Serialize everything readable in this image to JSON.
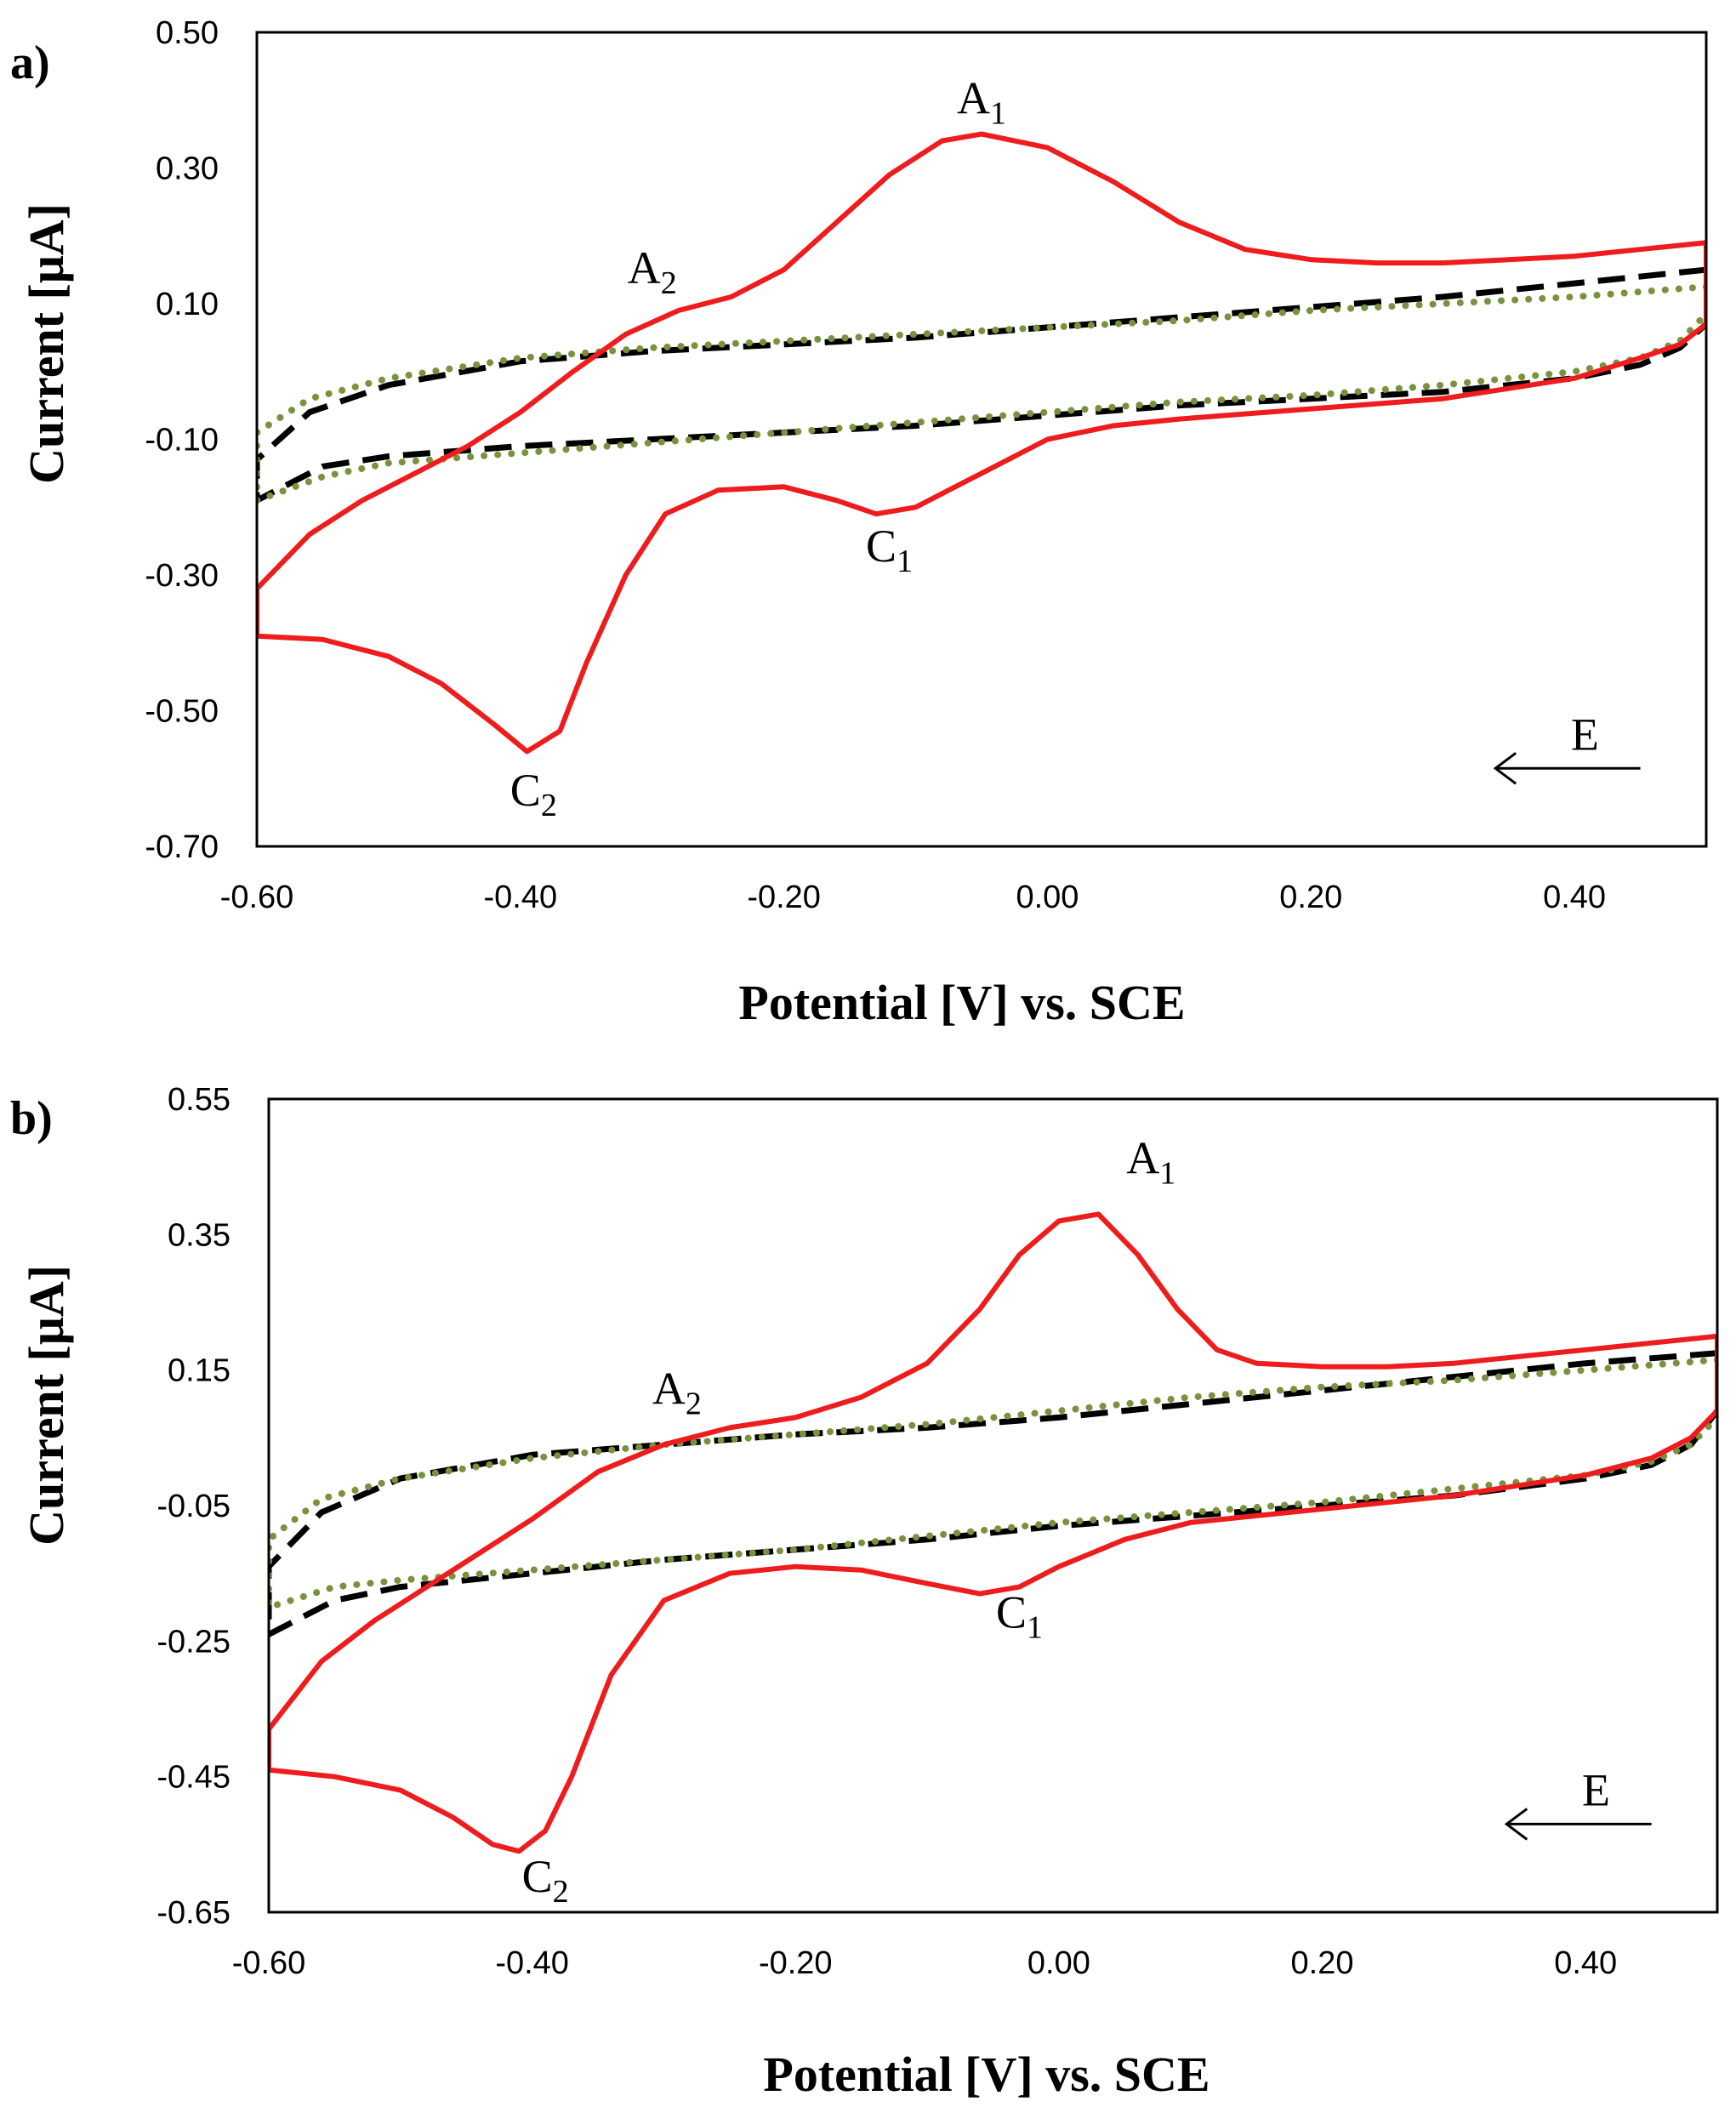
{
  "chart_data": [
    {
      "type": "line",
      "panel_label": "a)",
      "xlabel": "Potential [V] vs. SCE",
      "ylabel": "Current [μA]",
      "xlim": [
        -0.6,
        0.5
      ],
      "ylim": [
        -0.7,
        0.5
      ],
      "x_ticks": [
        -0.6,
        -0.4,
        -0.2,
        0.0,
        0.2,
        0.4
      ],
      "x_tick_labels": [
        "-0.60",
        "-0.40",
        "-0.20",
        "0.00",
        "0.20",
        "0.40"
      ],
      "y_ticks": [
        0.5,
        0.3,
        0.1,
        -0.1,
        -0.3,
        -0.5,
        -0.7
      ],
      "y_tick_labels": [
        "0.50",
        "0.30",
        "0.10",
        "-0.10",
        "-0.30",
        "-0.50",
        "-0.70"
      ],
      "grid": false,
      "annotations": [
        {
          "id": "A1",
          "main": "A",
          "sub": "1",
          "x": -0.05,
          "y": 0.38
        },
        {
          "id": "A2",
          "main": "A",
          "sub": "2",
          "x": -0.3,
          "y": 0.13
        },
        {
          "id": "C1",
          "main": "C",
          "sub": "1",
          "x": -0.12,
          "y": -0.28
        },
        {
          "id": "C2",
          "main": "C",
          "sub": "2",
          "x": -0.39,
          "y": -0.64
        }
      ],
      "scan_direction": {
        "label": "E",
        "x_from": 0.45,
        "x_to": 0.34,
        "y": -0.585
      },
      "series": [
        {
          "name": "red-solid",
          "color": "#ee1c1c",
          "style": "solid",
          "points": [
            [
              0.5,
              0.19
            ],
            [
              0.45,
              0.18
            ],
            [
              0.4,
              0.17
            ],
            [
              0.35,
              0.165
            ],
            [
              0.3,
              0.16
            ],
            [
              0.25,
              0.16
            ],
            [
              0.2,
              0.165
            ],
            [
              0.15,
              0.18
            ],
            [
              0.1,
              0.22
            ],
            [
              0.05,
              0.28
            ],
            [
              0.0,
              0.33
            ],
            [
              -0.05,
              0.35
            ],
            [
              -0.08,
              0.34
            ],
            [
              -0.12,
              0.29
            ],
            [
              -0.16,
              0.22
            ],
            [
              -0.2,
              0.15
            ],
            [
              -0.24,
              0.11
            ],
            [
              -0.28,
              0.09
            ],
            [
              -0.32,
              0.055
            ],
            [
              -0.36,
              0.0
            ],
            [
              -0.4,
              -0.06
            ],
            [
              -0.44,
              -0.11
            ],
            [
              -0.48,
              -0.15
            ],
            [
              -0.52,
              -0.19
            ],
            [
              -0.56,
              -0.24
            ],
            [
              -0.6,
              -0.32
            ],
            [
              -0.6,
              -0.39
            ],
            [
              -0.55,
              -0.395
            ],
            [
              -0.5,
              -0.42
            ],
            [
              -0.46,
              -0.46
            ],
            [
              -0.42,
              -0.52
            ],
            [
              -0.395,
              -0.56
            ],
            [
              -0.37,
              -0.53
            ],
            [
              -0.35,
              -0.43
            ],
            [
              -0.32,
              -0.3
            ],
            [
              -0.29,
              -0.21
            ],
            [
              -0.25,
              -0.175
            ],
            [
              -0.2,
              -0.17
            ],
            [
              -0.16,
              -0.19
            ],
            [
              -0.13,
              -0.21
            ],
            [
              -0.1,
              -0.2
            ],
            [
              -0.05,
              -0.15
            ],
            [
              0.0,
              -0.1
            ],
            [
              0.05,
              -0.08
            ],
            [
              0.1,
              -0.07
            ],
            [
              0.2,
              -0.055
            ],
            [
              0.3,
              -0.04
            ],
            [
              0.4,
              -0.01
            ],
            [
              0.45,
              0.02
            ],
            [
              0.48,
              0.04
            ],
            [
              0.5,
              0.07
            ],
            [
              0.5,
              0.19
            ]
          ]
        },
        {
          "name": "black-dashed",
          "color": "#000000",
          "style": "dashed",
          "points": [
            [
              0.5,
              0.15
            ],
            [
              0.4,
              0.13
            ],
            [
              0.3,
              0.11
            ],
            [
              0.2,
              0.095
            ],
            [
              0.1,
              0.08
            ],
            [
              0.0,
              0.065
            ],
            [
              -0.1,
              0.05
            ],
            [
              -0.2,
              0.04
            ],
            [
              -0.3,
              0.03
            ],
            [
              -0.4,
              0.015
            ],
            [
              -0.5,
              -0.02
            ],
            [
              -0.56,
              -0.06
            ],
            [
              -0.6,
              -0.13
            ],
            [
              -0.6,
              -0.19
            ],
            [
              -0.55,
              -0.14
            ],
            [
              -0.5,
              -0.125
            ],
            [
              -0.4,
              -0.11
            ],
            [
              -0.3,
              -0.1
            ],
            [
              -0.2,
              -0.09
            ],
            [
              -0.1,
              -0.08
            ],
            [
              0.0,
              -0.065
            ],
            [
              0.1,
              -0.05
            ],
            [
              0.2,
              -0.04
            ],
            [
              0.3,
              -0.03
            ],
            [
              0.4,
              -0.01
            ],
            [
              0.45,
              0.01
            ],
            [
              0.48,
              0.035
            ],
            [
              0.5,
              0.07
            ]
          ]
        },
        {
          "name": "green-dotted",
          "color": "#77933c",
          "style": "dotted",
          "points": [
            [
              0.5,
              0.125
            ],
            [
              0.4,
              0.11
            ],
            [
              0.3,
              0.1
            ],
            [
              0.2,
              0.09
            ],
            [
              0.1,
              0.075
            ],
            [
              0.0,
              0.065
            ],
            [
              -0.1,
              0.055
            ],
            [
              -0.2,
              0.045
            ],
            [
              -0.3,
              0.035
            ],
            [
              -0.4,
              0.02
            ],
            [
              -0.5,
              -0.01
            ],
            [
              -0.56,
              -0.04
            ],
            [
              -0.6,
              -0.09
            ],
            [
              -0.6,
              -0.19
            ],
            [
              -0.55,
              -0.155
            ],
            [
              -0.5,
              -0.135
            ],
            [
              -0.4,
              -0.12
            ],
            [
              -0.3,
              -0.105
            ],
            [
              -0.2,
              -0.09
            ],
            [
              -0.1,
              -0.075
            ],
            [
              0.0,
              -0.06
            ],
            [
              0.1,
              -0.045
            ],
            [
              0.2,
              -0.035
            ],
            [
              0.3,
              -0.02
            ],
            [
              0.4,
              0.0
            ],
            [
              0.45,
              0.02
            ],
            [
              0.48,
              0.045
            ],
            [
              0.5,
              0.085
            ]
          ]
        }
      ]
    },
    {
      "type": "line",
      "panel_label": "b)",
      "xlabel": "Potential [V] vs. SCE",
      "ylabel": "Current [μA]",
      "xlim": [
        -0.6,
        0.5
      ],
      "ylim": [
        -0.65,
        0.55
      ],
      "x_ticks": [
        -0.6,
        -0.4,
        -0.2,
        0.0,
        0.2,
        0.4
      ],
      "x_tick_labels": [
        "-0.60",
        "-0.40",
        "-0.20",
        "0.00",
        "0.20",
        "0.40"
      ],
      "y_ticks": [
        0.55,
        0.35,
        0.15,
        -0.05,
        -0.25,
        -0.45,
        -0.65
      ],
      "y_tick_labels": [
        "0.55",
        "0.35",
        "0.15",
        "-0.05",
        "-0.25",
        "-0.45",
        "-0.65"
      ],
      "grid": false,
      "annotations": [
        {
          "id": "A1",
          "main": "A",
          "sub": "1",
          "x": 0.07,
          "y": 0.44
        },
        {
          "id": "A2",
          "main": "A",
          "sub": "2",
          "x": -0.29,
          "y": 0.1
        },
        {
          "id": "C1",
          "main": "C",
          "sub": "1",
          "x": -0.03,
          "y": -0.23
        },
        {
          "id": "C2",
          "main": "C",
          "sub": "2",
          "x": -0.39,
          "y": -0.62
        }
      ],
      "scan_direction": {
        "label": "E",
        "x_from": 0.45,
        "x_to": 0.34,
        "y": -0.52
      },
      "series": [
        {
          "name": "red-solid",
          "color": "#ee1c1c",
          "style": "solid",
          "points": [
            [
              0.5,
              0.2
            ],
            [
              0.45,
              0.19
            ],
            [
              0.4,
              0.18
            ],
            [
              0.35,
              0.17
            ],
            [
              0.3,
              0.16
            ],
            [
              0.25,
              0.155
            ],
            [
              0.2,
              0.155
            ],
            [
              0.15,
              0.16
            ],
            [
              0.12,
              0.18
            ],
            [
              0.09,
              0.24
            ],
            [
              0.06,
              0.32
            ],
            [
              0.03,
              0.38
            ],
            [
              0.0,
              0.37
            ],
            [
              -0.03,
              0.32
            ],
            [
              -0.06,
              0.24
            ],
            [
              -0.1,
              0.16
            ],
            [
              -0.15,
              0.11
            ],
            [
              -0.2,
              0.08
            ],
            [
              -0.25,
              0.065
            ],
            [
              -0.3,
              0.04
            ],
            [
              -0.35,
              0.0
            ],
            [
              -0.4,
              -0.07
            ],
            [
              -0.44,
              -0.12
            ],
            [
              -0.48,
              -0.17
            ],
            [
              -0.52,
              -0.22
            ],
            [
              -0.56,
              -0.28
            ],
            [
              -0.6,
              -0.38
            ],
            [
              -0.6,
              -0.44
            ],
            [
              -0.55,
              -0.45
            ],
            [
              -0.5,
              -0.47
            ],
            [
              -0.46,
              -0.51
            ],
            [
              -0.43,
              -0.55
            ],
            [
              -0.41,
              -0.56
            ],
            [
              -0.39,
              -0.53
            ],
            [
              -0.37,
              -0.45
            ],
            [
              -0.34,
              -0.3
            ],
            [
              -0.3,
              -0.19
            ],
            [
              -0.25,
              -0.15
            ],
            [
              -0.2,
              -0.14
            ],
            [
              -0.15,
              -0.145
            ],
            [
              -0.1,
              -0.165
            ],
            [
              -0.06,
              -0.18
            ],
            [
              -0.03,
              -0.17
            ],
            [
              0.0,
              -0.14
            ],
            [
              0.05,
              -0.1
            ],
            [
              0.1,
              -0.075
            ],
            [
              0.2,
              -0.055
            ],
            [
              0.3,
              -0.035
            ],
            [
              0.4,
              -0.005
            ],
            [
              0.45,
              0.02
            ],
            [
              0.48,
              0.05
            ],
            [
              0.5,
              0.09
            ],
            [
              0.5,
              0.2
            ]
          ]
        },
        {
          "name": "black-dashed",
          "color": "#000000",
          "style": "dashed",
          "points": [
            [
              0.5,
              0.175
            ],
            [
              0.4,
              0.16
            ],
            [
              0.3,
              0.14
            ],
            [
              0.2,
              0.12
            ],
            [
              0.1,
              0.1
            ],
            [
              0.0,
              0.08
            ],
            [
              -0.1,
              0.065
            ],
            [
              -0.2,
              0.055
            ],
            [
              -0.3,
              0.04
            ],
            [
              -0.4,
              0.025
            ],
            [
              -0.5,
              -0.01
            ],
            [
              -0.56,
              -0.06
            ],
            [
              -0.6,
              -0.14
            ],
            [
              -0.6,
              -0.24
            ],
            [
              -0.55,
              -0.19
            ],
            [
              -0.5,
              -0.17
            ],
            [
              -0.4,
              -0.15
            ],
            [
              -0.3,
              -0.13
            ],
            [
              -0.2,
              -0.115
            ],
            [
              -0.1,
              -0.1
            ],
            [
              0.0,
              -0.08
            ],
            [
              0.1,
              -0.065
            ],
            [
              0.2,
              -0.05
            ],
            [
              0.3,
              -0.035
            ],
            [
              0.4,
              -0.01
            ],
            [
              0.45,
              0.01
            ],
            [
              0.48,
              0.04
            ],
            [
              0.5,
              0.09
            ]
          ]
        },
        {
          "name": "green-dotted",
          "color": "#77933c",
          "style": "dotted",
          "points": [
            [
              0.5,
              0.165
            ],
            [
              0.4,
              0.15
            ],
            [
              0.3,
              0.135
            ],
            [
              0.2,
              0.125
            ],
            [
              0.1,
              0.11
            ],
            [
              0.0,
              0.09
            ],
            [
              -0.1,
              0.07
            ],
            [
              -0.2,
              0.055
            ],
            [
              -0.3,
              0.04
            ],
            [
              -0.4,
              0.02
            ],
            [
              -0.5,
              -0.01
            ],
            [
              -0.56,
              -0.04
            ],
            [
              -0.6,
              -0.1
            ],
            [
              -0.6,
              -0.2
            ],
            [
              -0.55,
              -0.17
            ],
            [
              -0.5,
              -0.16
            ],
            [
              -0.4,
              -0.145
            ],
            [
              -0.3,
              -0.13
            ],
            [
              -0.2,
              -0.115
            ],
            [
              -0.1,
              -0.095
            ],
            [
              0.0,
              -0.075
            ],
            [
              0.1,
              -0.06
            ],
            [
              0.2,
              -0.045
            ],
            [
              0.3,
              -0.025
            ],
            [
              0.4,
              -0.005
            ],
            [
              0.45,
              0.015
            ],
            [
              0.48,
              0.04
            ],
            [
              0.5,
              0.08
            ]
          ]
        }
      ]
    }
  ]
}
